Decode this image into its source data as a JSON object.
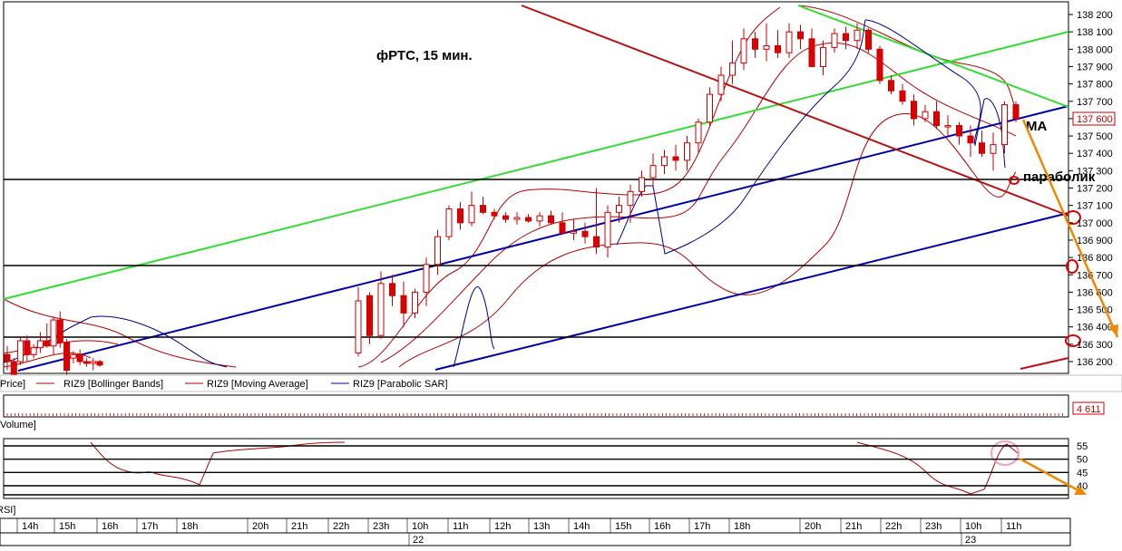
{
  "annotations": {
    "title": "фРТС,  15 мин.",
    "ma": "МА",
    "parabolic": "параболик"
  },
  "price_panel": {
    "current_price": "137 600",
    "y_ticks": [
      "138 200",
      "138 100",
      "138 000",
      "137 900",
      "137 800",
      "137 700",
      "137 600",
      "137 500",
      "137 400",
      "137 300",
      "137 200",
      "137 100",
      "137 000",
      "136 900",
      "136 800",
      "136 700",
      "136 600",
      "136 500",
      "136 400",
      "136 300",
      "136 200"
    ]
  },
  "legend": {
    "price": "Price]",
    "bollinger": "RIZ9 [Bollinger Bands]",
    "ma": "RIZ9 [Moving Average]",
    "sar": "RIZ9 [Parabolic SAR]"
  },
  "volume_panel": {
    "label": "Volume]",
    "value": "4 611"
  },
  "rsi_panel": {
    "label": "RSI]",
    "y_ticks": [
      "55",
      "50",
      "45",
      "40"
    ]
  },
  "time_axis": {
    "hours": [
      "14h",
      "15h",
      "16h",
      "17h",
      "18h",
      "20h",
      "21h",
      "22h",
      "23h",
      "10h",
      "11h",
      "12h",
      "13h",
      "14h",
      "15h",
      "16h",
      "17h",
      "18h",
      "20h",
      "21h",
      "22h",
      "23h",
      "10h",
      "11h"
    ],
    "dates": [
      "22",
      "23"
    ]
  },
  "colors": {
    "bull": "#ffffff",
    "bear": "#dd0000",
    "candle_edge": "#cc0000",
    "bollinger": "#b40000",
    "sar": "#00008b",
    "channel_blue": "#0000aa",
    "channel_green": "#33dd33",
    "channel_red": "#bb1111",
    "horizontal": "#000000",
    "arrow": "#ee8800"
  },
  "chart_data": [
    {
      "type": "candlestick",
      "title": "фРТС,  15 мин.",
      "y_unit": "price",
      "ylim": [
        136150,
        138250
      ],
      "series": [
        {
          "name": "Price",
          "values": [
            [
              136240,
              136290,
              136150,
              136200
            ],
            [
              136200,
              136220,
              136100,
              136110
            ],
            [
              136200,
              136340,
              136180,
              136320
            ],
            [
              136320,
              136350,
              136200,
              136240
            ],
            [
              136240,
              136300,
              136220,
              136280
            ],
            [
              136280,
              136370,
              136250,
              136320
            ],
            [
              136320,
              136420,
              136280,
              136290
            ],
            [
              136290,
              136460,
              136240,
              136440
            ],
            [
              136440,
              136490,
              136280,
              136310
            ],
            [
              136310,
              136330,
              136100,
              136150
            ],
            [
              136220,
              136260,
              136190,
              136240
            ],
            [
              136240,
              136270,
              136180,
              136200
            ],
            [
              136200,
              136220,
              136170,
              136190
            ],
            [
              136190,
              136220,
              136150,
              136200
            ],
            [
              136200,
              136210,
              136170,
              136180
            ],
            [
              136250,
              136630,
              136230,
              136550
            ],
            [
              136580,
              136600,
              136300,
              136350
            ],
            [
              136350,
              136720,
              136330,
              136650
            ],
            [
              136650,
              136700,
              136520,
              136580
            ],
            [
              136580,
              136660,
              136400,
              136480
            ],
            [
              136480,
              136620,
              136450,
              136600
            ],
            [
              136600,
              136800,
              136520,
              136760
            ],
            [
              136760,
              136960,
              136700,
              136920
            ],
            [
              136920,
              137100,
              136900,
              137080
            ],
            [
              137080,
              137120,
              136960,
              137000
            ],
            [
              137000,
              137180,
              136980,
              137100
            ],
            [
              137100,
              137150,
              137050,
              137060
            ],
            [
              137060,
              137080,
              137020,
              137040
            ],
            [
              137040,
              137060,
              137000,
              137020
            ],
            [
              137020,
              137060,
              136990,
              137030
            ],
            [
              137030,
              137050,
              137000,
              137010
            ],
            [
              137010,
              137060,
              136980,
              137040
            ],
            [
              137040,
              137070,
              136990,
              137000
            ],
            [
              137000,
              137060,
              136950,
              136940
            ],
            [
              136940,
              137020,
              136900,
              136950
            ],
            [
              136950,
              137000,
              136880,
              136920
            ],
            [
              136920,
              137200,
              136820,
              136860
            ],
            [
              136860,
              137100,
              136800,
              137060
            ],
            [
              137060,
              137150,
              137000,
              137100
            ],
            [
              137100,
              137220,
              137000,
              137180
            ],
            [
              137180,
              137300,
              137150,
              137260
            ],
            [
              137260,
              137400,
              137200,
              137330
            ],
            [
              137330,
              137420,
              137280,
              137380
            ],
            [
              137380,
              137450,
              137300,
              137360
            ],
            [
              137360,
              137500,
              137300,
              137460
            ],
            [
              137460,
              137600,
              137400,
              137580
            ],
            [
              137580,
              137780,
              137550,
              137740
            ],
            [
              137740,
              137900,
              137700,
              137850
            ],
            [
              137850,
              138050,
              137800,
              137920
            ],
            [
              137920,
              138120,
              137880,
              138060
            ],
            [
              138060,
              138100,
              137950,
              138000
            ],
            [
              138000,
              138150,
              137930,
              138020
            ],
            [
              138020,
              138110,
              137950,
              137980
            ],
            [
              137980,
              138150,
              137950,
              138100
            ],
            [
              138100,
              138140,
              138000,
              138060
            ],
            [
              138060,
              138120,
              137900,
              137900
            ],
            [
              137900,
              138050,
              137850,
              138010
            ],
            [
              138010,
              138120,
              137980,
              138090
            ],
            [
              138090,
              138130,
              138000,
              138050
            ],
            [
              138050,
              138150,
              138000,
              138110
            ],
            [
              138110,
              138120,
              137980,
              138000
            ],
            [
              138000,
              138020,
              137800,
              137820
            ],
            [
              137820,
              137850,
              137740,
              137760
            ],
            [
              137760,
              137800,
              137680,
              137700
            ],
            [
              137700,
              137740,
              137560,
              137600
            ],
            [
              137600,
              137680,
              137580,
              137640
            ],
            [
              137640,
              137700,
              137540,
              137560
            ],
            [
              137560,
              137620,
              137500,
              137560
            ],
            [
              137560,
              137580,
              137450,
              137500
            ],
            [
              137500,
              137560,
              137380,
              137460
            ],
            [
              137460,
              137530,
              137380,
              137400
            ],
            [
              137400,
              137520,
              137300,
              137450
            ],
            [
              137450,
              137700,
              137400,
              137680
            ],
            [
              137680,
              137700,
              137580,
              137600
            ]
          ]
        }
      ]
    }
  ]
}
